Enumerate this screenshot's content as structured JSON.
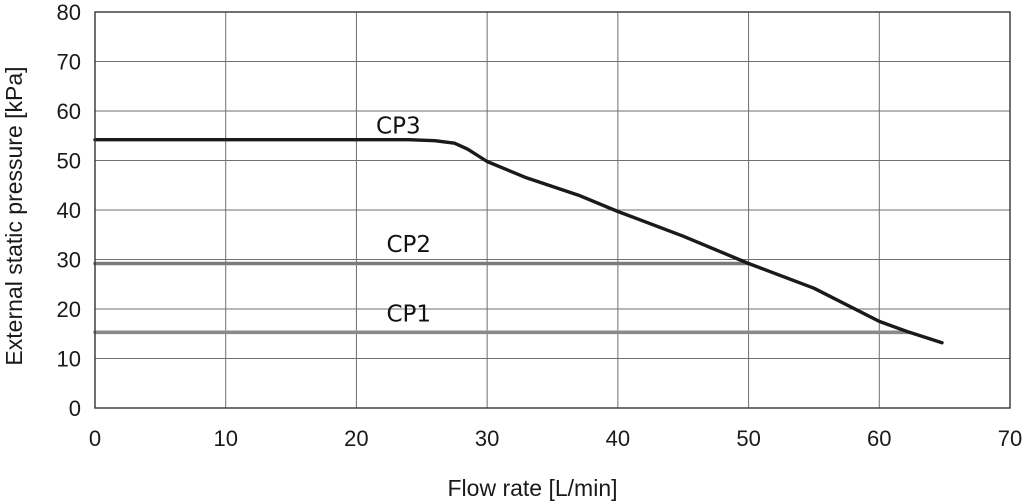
{
  "chart_data": {
    "type": "line",
    "title": "",
    "xlabel": "Flow rate [L/min]",
    "ylabel": "External static pressure [kPa]",
    "xlim": [
      0,
      70
    ],
    "ylim": [
      0,
      80
    ],
    "grid": true,
    "x_ticks": [
      "0",
      "10",
      "20",
      "30",
      "40",
      "50",
      "60",
      "70"
    ],
    "y_ticks": [
      "0",
      "10",
      "20",
      "30",
      "40",
      "50",
      "60",
      "70",
      "80"
    ],
    "series": [
      {
        "name": "CP3",
        "color": "#1a1a1a",
        "points": [
          [
            0,
            54.2
          ],
          [
            24,
            54.2
          ],
          [
            26,
            54
          ],
          [
            27.5,
            53.5
          ],
          [
            28.5,
            52.3
          ],
          [
            30,
            49.8
          ],
          [
            33,
            46.5
          ],
          [
            37,
            43
          ],
          [
            40,
            39.7
          ],
          [
            45,
            34.7
          ],
          [
            50,
            29.2
          ],
          [
            55,
            24.2
          ],
          [
            60,
            17.5
          ],
          [
            62.3,
            15.3
          ],
          [
            64.8,
            13.2
          ]
        ]
      },
      {
        "name": "CP2",
        "color": "#7a7a7a",
        "points": [
          [
            0,
            29.2
          ],
          [
            50,
            29.2
          ]
        ]
      },
      {
        "name": "CP1",
        "color": "#8a8a8a",
        "points": [
          [
            0,
            15.3
          ],
          [
            62.3,
            15.3
          ]
        ]
      }
    ],
    "series_labels": [
      {
        "name": "CP3",
        "x": 21.5,
        "y": 55.5
      },
      {
        "name": "CP2",
        "x": 22.3,
        "y": 31.5
      },
      {
        "name": "CP1",
        "x": 22.3,
        "y": 17.5
      }
    ]
  }
}
